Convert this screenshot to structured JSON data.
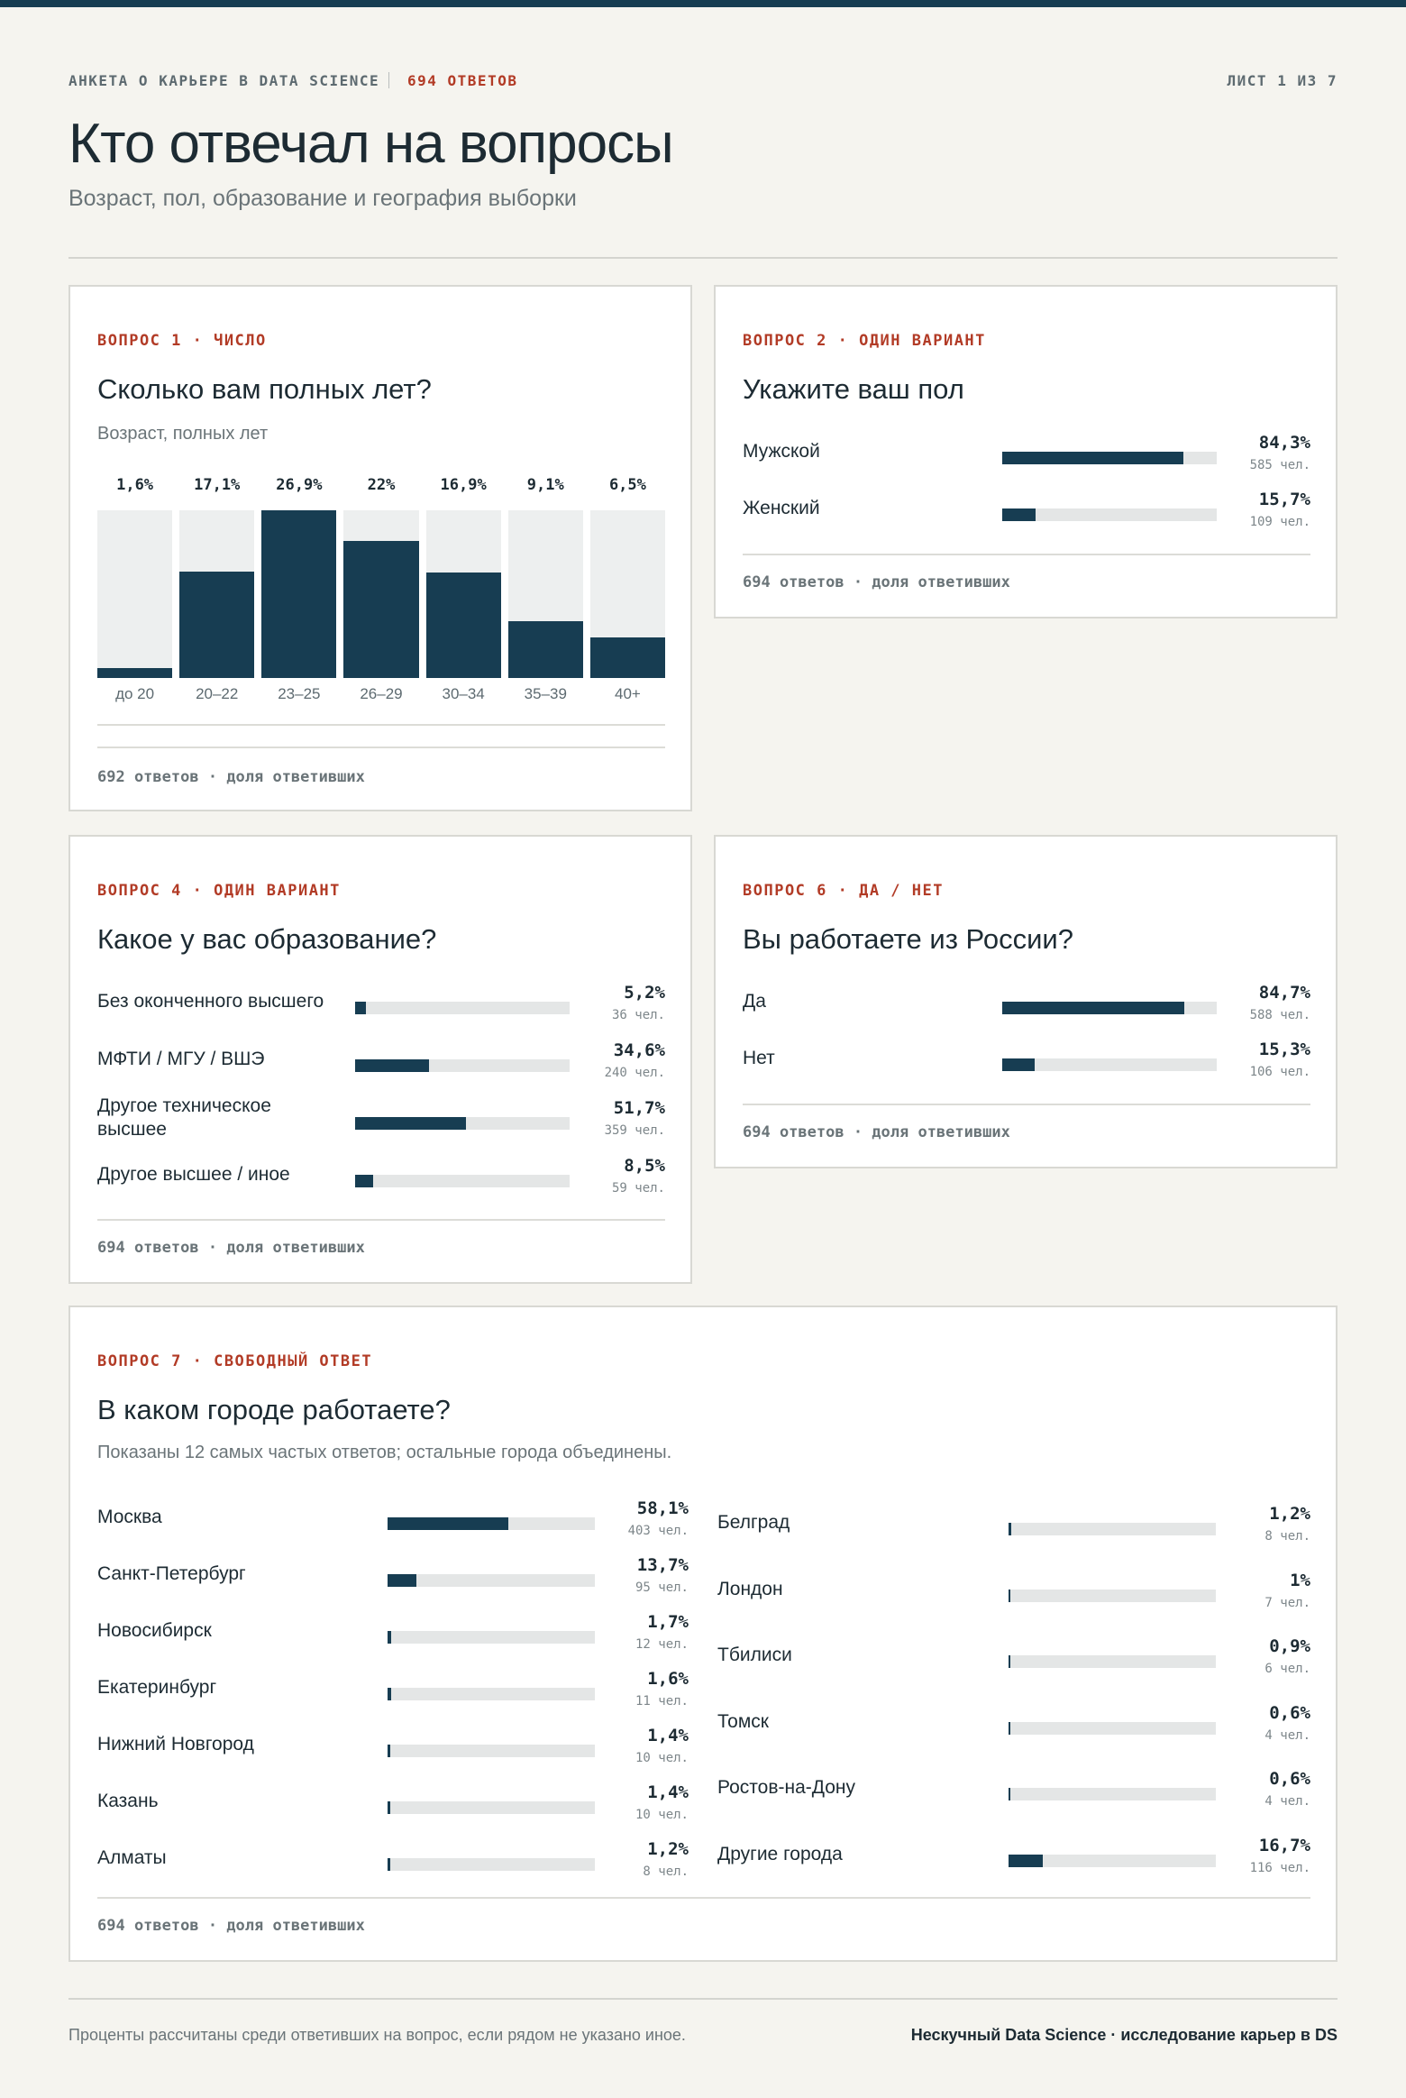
{
  "header": {
    "survey_name": "АНКЕТА О КАРЬЕРЕ В DATA SCIENCE",
    "responses": "694 ОТВЕТОВ",
    "sheet": "ЛИСТ 1 ИЗ 7",
    "title": "Кто отвечал на вопросы",
    "subtitle": "Возраст, пол, образование и география выборки"
  },
  "colors": {
    "accent": "#b23b26",
    "bar": "#173d52",
    "track": "#e4e6e6",
    "background": "#f5f4ef"
  },
  "chart_data": [
    {
      "type": "bar",
      "label": "ВОПРОС 1 · ЧИСЛО",
      "title": "Сколько вам полных лет?",
      "note": "Возраст, полных лет",
      "categories": [
        "до 20",
        "20–22",
        "23–25",
        "26–29",
        "30–34",
        "35–39",
        "40+"
      ],
      "values": [
        1.6,
        17.1,
        26.9,
        22,
        16.9,
        9.1,
        6.5
      ],
      "value_labels": [
        "1,6%",
        "17,1%",
        "26,9%",
        "22%",
        "16,9%",
        "9,1%",
        "6,5%"
      ],
      "ylim": [
        0,
        26.9
      ],
      "footnote": "692 ответов · доля ответивших"
    },
    {
      "type": "bar",
      "label": "ВОПРОС 2 · ОДИН ВАРИАНТ",
      "title": "Укажите ваш пол",
      "categories": [
        "Мужской",
        "Женский"
      ],
      "values": [
        84.3,
        15.7
      ],
      "value_labels": [
        "84,3%",
        "15,7%"
      ],
      "counts": [
        "585 чел.",
        "109 чел."
      ],
      "xlim": [
        0,
        100
      ],
      "footnote": "694 ответов · доля ответивших"
    },
    {
      "type": "bar",
      "label": "ВОПРОС 4 · ОДИН ВАРИАНТ",
      "title": "Какое у вас образование?",
      "categories": [
        "Без оконченного высшего",
        "МФТИ / МГУ / ВШЭ",
        "Другое техническое высшее",
        "Другое высшее / иное"
      ],
      "values": [
        5.2,
        34.6,
        51.7,
        8.5
      ],
      "value_labels": [
        "5,2%",
        "34,6%",
        "51,7%",
        "8,5%"
      ],
      "counts": [
        "36 чел.",
        "240 чел.",
        "359 чел.",
        "59 чел."
      ],
      "xlim": [
        0,
        100
      ],
      "footnote": "694 ответов · доля ответивших"
    },
    {
      "type": "bar",
      "label": "ВОПРОС 6 · ДА / НЕТ",
      "title": "Вы работаете из России?",
      "categories": [
        "Да",
        "Нет"
      ],
      "values": [
        84.7,
        15.3
      ],
      "value_labels": [
        "84,7%",
        "15,3%"
      ],
      "counts": [
        "588 чел.",
        "106 чел."
      ],
      "xlim": [
        0,
        100
      ],
      "footnote": "694 ответов · доля ответивших"
    },
    {
      "type": "bar",
      "label": "ВОПРОС 7 · СВОБОДНЫЙ ОТВЕТ",
      "title": "В каком городе работаете?",
      "note": "Показаны 12 самых частых ответов; остальные города объединены.",
      "categories": [
        "Москва",
        "Санкт-Петербург",
        "Новосибирск",
        "Екатеринбург",
        "Нижний Новгород",
        "Казань",
        "Алматы",
        "Белград",
        "Лондон",
        "Тбилиси",
        "Томск",
        "Ростов-на-Дону",
        "Другие города"
      ],
      "values": [
        58.1,
        13.7,
        1.7,
        1.6,
        1.4,
        1.4,
        1.2,
        1.2,
        1.0,
        0.9,
        0.6,
        0.6,
        16.7
      ],
      "value_labels": [
        "58,1%",
        "13,7%",
        "1,7%",
        "1,6%",
        "1,4%",
        "1,4%",
        "1,2%",
        "1,2%",
        "1%",
        "0,9%",
        "0,6%",
        "0,6%",
        "16,7%"
      ],
      "counts": [
        "403 чел.",
        "95 чел.",
        "12 чел.",
        "11 чел.",
        "10 чел.",
        "10 чел.",
        "8 чел.",
        "8 чел.",
        "7 чел.",
        "6 чел.",
        "4 чел.",
        "4 чел.",
        "116 чел."
      ],
      "xlim": [
        0,
        100
      ],
      "footnote": "694 ответов · доля ответивших"
    }
  ],
  "footer": {
    "left": "Проценты рассчитаны среди ответивших на вопрос, если рядом не указано иное.",
    "right": "Нескучный Data Science · исследование карьер в DS"
  }
}
